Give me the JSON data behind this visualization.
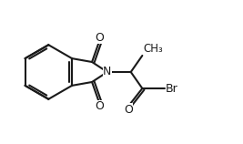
{
  "bg_color": "#ffffff",
  "line_color": "#1a1a1a",
  "line_width": 1.5,
  "font_size": 9,
  "figsize": [
    2.67,
    1.58
  ],
  "dpi": 100,
  "xlim": [
    0,
    9
  ],
  "ylim": [
    0,
    6
  ]
}
